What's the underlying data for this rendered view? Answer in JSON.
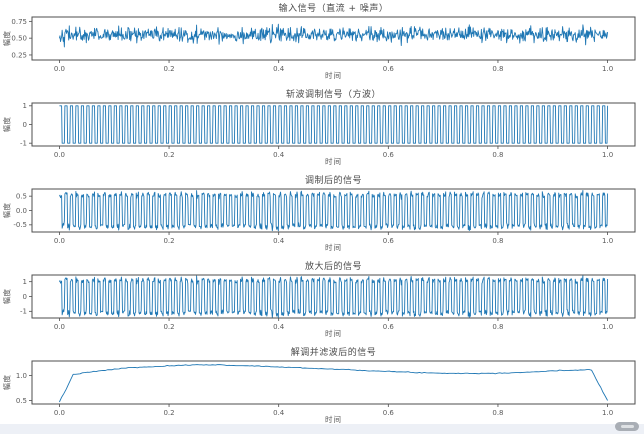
{
  "figure": {
    "line_color": "#1f77b4",
    "spine_color": "#4d4d4d",
    "title_color": "#4a4a4a",
    "tick_color": "#5a5a5a",
    "background": "#ffffff",
    "footer_strip_color": "#edf0f6",
    "watermark_color": "#a9aeb5"
  },
  "chart_data": [
    {
      "type": "line",
      "title": "输入信号（直流 + 噪声）",
      "xlabel": "时间",
      "ylabel": "幅度",
      "xlim": [
        -0.05,
        1.05
      ],
      "ylim": [
        0.175,
        0.815
      ],
      "xtick_values": [
        0.0,
        0.2,
        0.4,
        0.6,
        0.8,
        1.0
      ],
      "xtick_labels": [
        "0.0",
        "0.2",
        "0.4",
        "0.6",
        "0.8",
        "1.0"
      ],
      "ytick_values": [
        0.25,
        0.5,
        0.75
      ],
      "ytick_labels": [
        "0.25",
        "0.50",
        "0.75"
      ],
      "grid": false,
      "legend": null,
      "signal": {
        "kind": "dc_plus_noise",
        "dc": 0.55,
        "noise_std": 0.055,
        "n": 1000,
        "seed": 42
      }
    },
    {
      "type": "line",
      "title": "斩波调制信号（方波）",
      "xlabel": "时间",
      "ylabel": "幅度",
      "xlim": [
        -0.05,
        1.05
      ],
      "ylim": [
        -1.15,
        1.15
      ],
      "xtick_values": [
        0.0,
        0.2,
        0.4,
        0.6,
        0.8,
        1.0
      ],
      "xtick_labels": [
        "0.0",
        "0.2",
        "0.4",
        "0.6",
        "0.8",
        "1.0"
      ],
      "ytick_values": [
        1,
        0,
        -1
      ],
      "ytick_labels": [
        "1",
        "0",
        "-1"
      ],
      "grid": false,
      "legend": null,
      "signal": {
        "kind": "square_wave",
        "freq_hz": 100,
        "amplitude": 1,
        "n": 1000
      }
    },
    {
      "type": "line",
      "title": "调制后的信号",
      "xlabel": "时间",
      "ylabel": "幅度",
      "xlim": [
        -0.05,
        1.05
      ],
      "ylim": [
        -0.75,
        0.75
      ],
      "xtick_values": [
        0.0,
        0.2,
        0.4,
        0.6,
        0.8,
        1.0
      ],
      "xtick_labels": [
        "0.0",
        "0.2",
        "0.4",
        "0.6",
        "0.8",
        "1.0"
      ],
      "ytick_values": [
        0.5,
        0.0,
        -0.5
      ],
      "ytick_labels": [
        "0.5",
        "0.0",
        "-0.5"
      ],
      "grid": false,
      "legend": null,
      "signal": {
        "kind": "product_of_input_and_square",
        "sources": [
          0,
          1
        ]
      }
    },
    {
      "type": "line",
      "title": "放大后的信号",
      "xlabel": "时间",
      "ylabel": "幅度",
      "xlim": [
        -0.05,
        1.05
      ],
      "ylim": [
        -1.45,
        1.45
      ],
      "xtick_values": [
        0.0,
        0.2,
        0.4,
        0.6,
        0.8,
        1.0
      ],
      "xtick_labels": [
        "0.0",
        "0.2",
        "0.4",
        "0.6",
        "0.8",
        "1.0"
      ],
      "ytick_values": [
        1,
        0,
        -1
      ],
      "ytick_labels": [
        "1",
        "0",
        "-1"
      ],
      "grid": false,
      "legend": null,
      "signal": {
        "kind": "amplified",
        "source": 2,
        "gain": 2
      }
    },
    {
      "type": "line",
      "title": "解调并滤波后的信号",
      "xlabel": "时间",
      "ylabel": "幅度",
      "xlim": [
        -0.05,
        1.05
      ],
      "ylim": [
        0.43,
        1.29
      ],
      "xtick_values": [
        0.0,
        0.2,
        0.4,
        0.6,
        0.8,
        1.0
      ],
      "xtick_labels": [
        "0.0",
        "0.2",
        "0.4",
        "0.6",
        "0.8",
        "1.0"
      ],
      "ytick_values": [
        1.0,
        0.5
      ],
      "ytick_labels": [
        "1.0",
        "0.5"
      ],
      "grid": false,
      "legend": null,
      "signal": {
        "kind": "smoothed_points",
        "n": 240,
        "jitter_std": 0.004,
        "seed": 7,
        "points": [
          [
            0.0,
            0.47
          ],
          [
            0.012,
            0.72
          ],
          [
            0.025,
            1.02
          ],
          [
            0.05,
            1.06
          ],
          [
            0.08,
            1.1
          ],
          [
            0.12,
            1.15
          ],
          [
            0.16,
            1.17
          ],
          [
            0.2,
            1.19
          ],
          [
            0.25,
            1.215
          ],
          [
            0.28,
            1.215
          ],
          [
            0.32,
            1.2
          ],
          [
            0.36,
            1.19
          ],
          [
            0.4,
            1.17
          ],
          [
            0.44,
            1.155
          ],
          [
            0.48,
            1.135
          ],
          [
            0.52,
            1.12
          ],
          [
            0.56,
            1.1
          ],
          [
            0.6,
            1.08
          ],
          [
            0.64,
            1.065
          ],
          [
            0.68,
            1.05
          ],
          [
            0.72,
            1.045
          ],
          [
            0.76,
            1.04
          ],
          [
            0.8,
            1.048
          ],
          [
            0.84,
            1.06
          ],
          [
            0.88,
            1.08
          ],
          [
            0.92,
            1.1
          ],
          [
            0.95,
            1.112
          ],
          [
            0.97,
            1.12
          ],
          [
            1.0,
            0.5
          ]
        ]
      }
    }
  ]
}
